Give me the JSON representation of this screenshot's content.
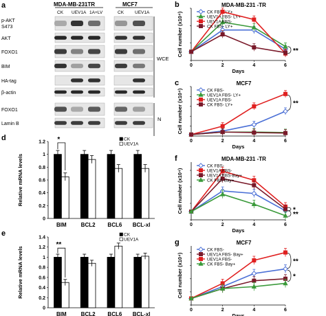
{
  "panel_a": {
    "letter": "a",
    "group1": "MDA-MB-231TR",
    "group2": "MCF7",
    "lanes": [
      "CK",
      "UEV1A",
      "1A+LV",
      "CK",
      "UEV1A"
    ],
    "rows": [
      "p-AKT S473",
      "AKT",
      "FOXO1",
      "BIM",
      "HA-tag",
      "β-actin",
      "FOXO1",
      "Lamin B"
    ],
    "wce": "WCE",
    "n": "N"
  },
  "chart_data": [
    {
      "id": "b",
      "letter": "b",
      "type": "line",
      "title": "MDA-MB-231 -TR",
      "xlabel": "Days",
      "ylabel": "Cell number (x10⁴)",
      "x": [
        0,
        2,
        4,
        6
      ],
      "xticks": [
        "0",
        "2",
        "4",
        "6"
      ],
      "xlim": [
        0,
        6
      ],
      "ylim": [
        0,
        6
      ],
      "series": [
        {
          "name": "CK FBS- LY+",
          "color": "#4a6fd6",
          "marker": "diamond",
          "values": [
            1.0,
            3.5,
            3.5,
            1.3
          ]
        },
        {
          "name": "UEV1A FBS- LY+",
          "color": "#3b9a3b",
          "marker": "triangle",
          "values": [
            1.0,
            4.4,
            3.8,
            1.6
          ]
        },
        {
          "name": "UEV1A FBS-",
          "color": "#e02020",
          "marker": "square",
          "values": [
            1.0,
            5.6,
            4.7,
            0.8
          ]
        },
        {
          "name": "CK FBS- LY+",
          "color": "#7a1a2a",
          "marker": "square",
          "values": [
            1.0,
            3.0,
            1.5,
            0.9
          ]
        }
      ],
      "sig": [
        "**"
      ]
    },
    {
      "id": "c",
      "letter": "c",
      "type": "line",
      "title": "MCF7",
      "xlabel": "Days",
      "ylabel": "Cell number (x10⁴)",
      "x": [
        0,
        2,
        4,
        6
      ],
      "xticks": [
        "0",
        "2",
        "4",
        "6"
      ],
      "xlim": [
        0,
        6
      ],
      "ylim": [
        0,
        10
      ],
      "series": [
        {
          "name": "CK FBS-",
          "color": "#4a6fd6",
          "marker": "diamond",
          "values": [
            0.3,
            1.0,
            2.3,
            5.0
          ]
        },
        {
          "name": "UEV1A FBS- LY+",
          "color": "#3b9a3b",
          "marker": "triangle",
          "values": [
            0.3,
            0.8,
            0.8,
            0.7
          ]
        },
        {
          "name": "UEV1A FBS-",
          "color": "#e02020",
          "marker": "square",
          "values": [
            0.3,
            2.0,
            6.0,
            8.5
          ]
        },
        {
          "name": "CK FBS- LY+",
          "color": "#7a1a2a",
          "marker": "square",
          "values": [
            0.3,
            0.8,
            0.7,
            0.6
          ]
        }
      ],
      "sig": [
        "**"
      ]
    },
    {
      "id": "d",
      "letter": "d",
      "type": "bar",
      "xlabel": "",
      "ylabel": "Relative mRNA levels",
      "categories": [
        "BIM",
        "BCL2",
        "BCL6",
        "BCL-xl"
      ],
      "yticks": [
        "0",
        "0.2",
        "0.4",
        "0.6",
        "0.8",
        "1",
        "1.2"
      ],
      "ylim": [
        0,
        1.2
      ],
      "series": [
        {
          "name": "CK",
          "fill": "#000000",
          "values": [
            1.0,
            1.0,
            1.0,
            1.0
          ]
        },
        {
          "name": "UEV1A",
          "fill": "#ffffff",
          "values": [
            0.65,
            0.92,
            0.78,
            0.78
          ]
        }
      ],
      "sig": [
        "*"
      ]
    },
    {
      "id": "e",
      "letter": "e",
      "type": "bar",
      "xlabel": "",
      "ylabel": "Relative mRNA levels",
      "categories": [
        "BIM",
        "BCL2",
        "BCL6",
        "BCL-xl"
      ],
      "yticks": [
        "0",
        "0.2",
        "0.4",
        "0.6",
        "0.8",
        "1",
        "1.2",
        "1.4"
      ],
      "ylim": [
        0,
        1.4
      ],
      "series": [
        {
          "name": "CK",
          "fill": "#000000",
          "values": [
            1.0,
            1.0,
            1.0,
            1.0
          ]
        },
        {
          "name": "UEV1A",
          "fill": "#ffffff",
          "values": [
            0.5,
            0.88,
            1.22,
            1.02
          ]
        }
      ],
      "sig": [
        "**"
      ]
    },
    {
      "id": "f",
      "letter": "f",
      "type": "line",
      "title": "MDA-MB-231 -TR",
      "xlabel": "Days",
      "ylabel": "Cell number (x10⁴)",
      "x": [
        0,
        2,
        4,
        6
      ],
      "xticks": [
        "0",
        "2",
        "4",
        "6"
      ],
      "xlim": [
        0,
        6
      ],
      "ylim": [
        0,
        7
      ],
      "series": [
        {
          "name": "CK FBS-",
          "color": "#4a6fd6",
          "marker": "diamond",
          "values": [
            1.0,
            3.5,
            3.2,
            1.1
          ]
        },
        {
          "name": "UEV1A FBS-",
          "color": "#e02020",
          "marker": "square",
          "values": [
            1.0,
            5.9,
            4.8,
            1.6
          ]
        },
        {
          "name": "UEV1A FBS-Bay+",
          "color": "#7a1a2a",
          "marker": "square",
          "values": [
            1.0,
            5.0,
            4.2,
            1.3
          ]
        },
        {
          "name": "CK FBS-Bay+",
          "color": "#3b9a3b",
          "marker": "triangle",
          "values": [
            1.0,
            3.1,
            1.9,
            0.5
          ]
        }
      ],
      "sig": [
        "*",
        "**"
      ]
    },
    {
      "id": "g",
      "letter": "g",
      "type": "line",
      "title": "MCF7",
      "xlabel": "Days",
      "ylabel": "Cell number (x10⁴)",
      "x": [
        0,
        2,
        4,
        6
      ],
      "xticks": [
        "0",
        "2",
        "4",
        "6"
      ],
      "xlim": [
        0,
        6
      ],
      "ylim": [
        0,
        9
      ],
      "series": [
        {
          "name": "CK FBS-",
          "color": "#4a6fd6",
          "marker": "diamond",
          "values": [
            1.0,
            2.8,
            4.8,
            5.5
          ]
        },
        {
          "name": "UEV1A FBS- Bay+",
          "color": "#7a1a2a",
          "marker": "square",
          "values": [
            1.0,
            2.5,
            3.7,
            4.0
          ]
        },
        {
          "name": "UEV1A FBS-",
          "color": "#e02020",
          "marker": "square",
          "values": [
            1.0,
            3.3,
            6.8,
            8.0
          ]
        },
        {
          "name": "CK FBS- Bay+",
          "color": "#3b9a3b",
          "marker": "triangle",
          "values": [
            1.0,
            2.5,
            2.8,
            3.3
          ]
        }
      ],
      "sig": [
        "**",
        "*"
      ]
    }
  ]
}
